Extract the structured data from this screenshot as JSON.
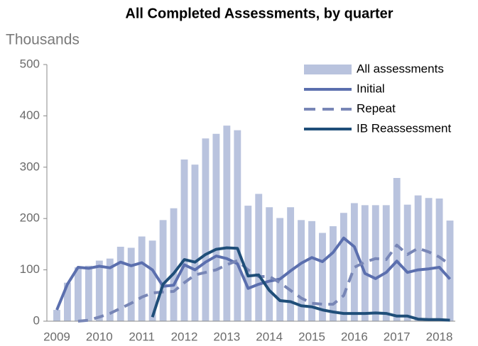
{
  "chart_data": {
    "type": "bar_line",
    "title": "All Completed Assessments, by quarter",
    "y_axis_label": "Thousands",
    "categories": [
      "2009",
      null,
      null,
      null,
      "2010",
      null,
      null,
      null,
      "2011",
      null,
      null,
      null,
      "2012",
      null,
      null,
      null,
      "2013",
      null,
      null,
      null,
      "2014",
      null,
      null,
      null,
      "2015",
      null,
      null,
      null,
      "2016",
      null,
      null,
      null,
      "2017",
      null,
      null,
      null,
      "2018",
      null
    ],
    "series": [
      {
        "name": "All assessments",
        "kind": "bar",
        "color": "#b9c3de",
        "values": [
          22,
          75,
          105,
          108,
          118,
          122,
          145,
          143,
          165,
          157,
          197,
          220,
          315,
          305,
          356,
          365,
          381,
          372,
          225,
          248,
          222,
          201,
          222,
          197,
          195,
          172,
          185,
          211,
          230,
          226,
          226,
          226,
          279,
          227,
          245,
          240,
          239,
          196
        ]
      },
      {
        "name": "Initial",
        "kind": "line",
        "color": "#5b6fae",
        "dash": false,
        "values": [
          22,
          72,
          105,
          103,
          107,
          104,
          115,
          108,
          114,
          100,
          68,
          70,
          110,
          100,
          115,
          127,
          122,
          112,
          64,
          72,
          78,
          82,
          98,
          113,
          124,
          116,
          134,
          162,
          145,
          93,
          83,
          95,
          117,
          95,
          100,
          102,
          105,
          82
        ]
      },
      {
        "name": "Repeat",
        "kind": "line",
        "color": "#7886b6",
        "dash": true,
        "values": [
          null,
          null,
          0,
          2,
          8,
          15,
          25,
          35,
          47,
          55,
          57,
          58,
          75,
          90,
          95,
          100,
          110,
          118,
          100,
          87,
          87,
          75,
          60,
          45,
          35,
          33,
          33,
          50,
          105,
          115,
          122,
          120,
          148,
          130,
          142,
          135,
          125,
          110
        ]
      },
      {
        "name": "IB Reassessment",
        "kind": "line",
        "color": "#1f4e79",
        "dash": false,
        "values": [
          null,
          null,
          null,
          null,
          null,
          null,
          null,
          null,
          null,
          8,
          72,
          93,
          120,
          115,
          130,
          140,
          143,
          142,
          88,
          90,
          60,
          40,
          38,
          30,
          28,
          22,
          18,
          15,
          15,
          15,
          16,
          15,
          10,
          10,
          4,
          3,
          3,
          2
        ]
      }
    ],
    "ylim": [
      0,
      500
    ],
    "yticks": [
      0,
      100,
      200,
      300,
      400,
      500
    ],
    "grid": false,
    "legend": "upper right"
  }
}
